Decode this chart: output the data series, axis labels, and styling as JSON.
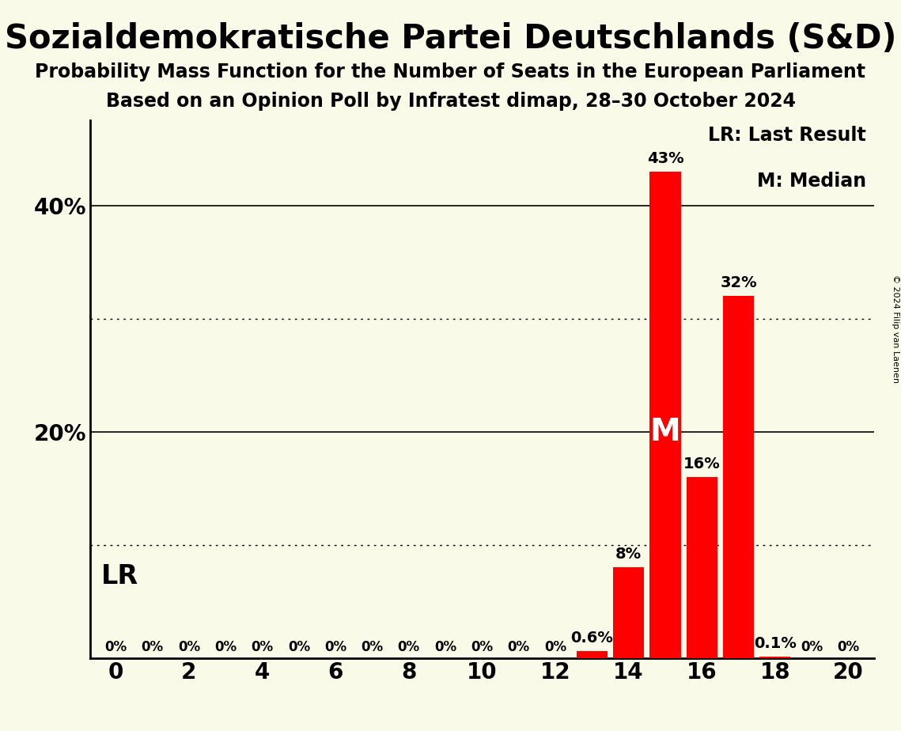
{
  "title": "Sozialdemokratische Partei Deutschlands (S&D)",
  "subtitle1": "Probability Mass Function for the Number of Seats in the European Parliament",
  "subtitle2": "Based on an Opinion Poll by Infratest dimap, 28–30 October 2024",
  "copyright": "© 2024 Filip van Laenen",
  "background_color": "#FAFAE8",
  "bar_color": "#FF0000",
  "seats": [
    0,
    1,
    2,
    3,
    4,
    5,
    6,
    7,
    8,
    9,
    10,
    11,
    12,
    13,
    14,
    15,
    16,
    17,
    18,
    19,
    20
  ],
  "probabilities": [
    0.0,
    0.0,
    0.0,
    0.0,
    0.0,
    0.0,
    0.0,
    0.0,
    0.0,
    0.0,
    0.0,
    0.0,
    0.0,
    0.006,
    0.08,
    0.43,
    0.16,
    0.32,
    0.001,
    0.0,
    0.0
  ],
  "bar_labels": [
    "0%",
    "0%",
    "0%",
    "0%",
    "0%",
    "0%",
    "0%",
    "0%",
    "0%",
    "0%",
    "0%",
    "0%",
    "0%",
    "0.6%",
    "8%",
    "43%",
    "16%",
    "32%",
    "0.1%",
    "0%",
    "0%"
  ],
  "median_seat": 15,
  "xlim": [
    -0.7,
    20.7
  ],
  "ylim": [
    0,
    0.475
  ],
  "yticks_solid": [
    0.2,
    0.4
  ],
  "ytick_labels": [
    "20%",
    "40%"
  ],
  "yticks_dotted": [
    0.1,
    0.3
  ],
  "xticks": [
    0,
    2,
    4,
    6,
    8,
    10,
    12,
    14,
    16,
    18,
    20
  ],
  "legend_text_lr": "LR: Last Result",
  "legend_text_m": "M: Median",
  "lr_label": "LR",
  "median_label": "M",
  "bar_label_fontsize": 14,
  "zero_label_fontsize": 12,
  "tick_fontsize": 20,
  "title_fontsize": 30,
  "subtitle_fontsize": 17,
  "lr_fontsize": 24,
  "median_fontsize": 28,
  "legend_fontsize": 17
}
